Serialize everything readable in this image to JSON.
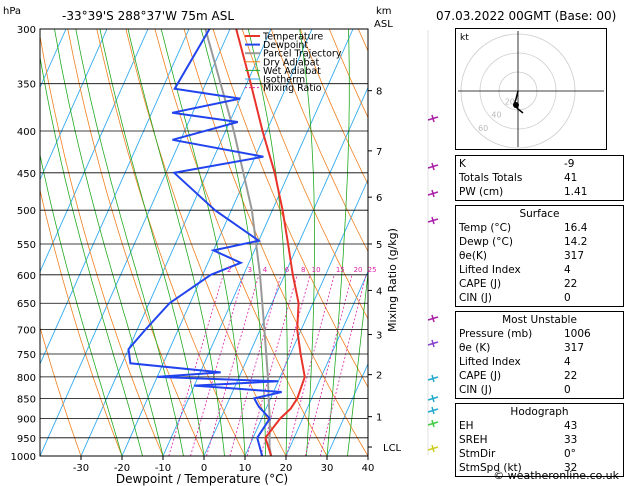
{
  "header": {
    "hpa_label": "hPa",
    "location": "-33°39'S 288°37'W 75m ASL",
    "km_label": "km",
    "asl_label": "ASL",
    "datetime": "07.03.2022 00GMT (Base: 00)"
  },
  "legend": [
    "Temperature",
    "Dewpoint",
    "Parcel Trajectory",
    "Dry Adiabat",
    "Wet Adiabat",
    "Isotherm",
    "Mixing Ratio"
  ],
  "colors": {
    "temperature": "#e8332a",
    "dewpoint": "#2244ee",
    "parcel": "#999999",
    "dry_adiabat": "#f08020",
    "wet_adiabat": "#22aa22",
    "isotherm": "#33aaee",
    "mixing_ratio": "#dd22aa"
  },
  "chart_data": {
    "type": "skew-t",
    "xlabel": "Dewpoint / Temperature (°C)",
    "ylabel_right": "Mixing Ratio (g/kg)",
    "pressure_levels": [
      300,
      350,
      400,
      450,
      500,
      550,
      600,
      650,
      700,
      750,
      800,
      850,
      900,
      950,
      1000
    ],
    "temperature_ticks": [
      -30,
      -20,
      -10,
      0,
      10,
      20,
      30,
      40
    ],
    "km_ticks": [
      {
        "label": "8",
        "p": 357
      },
      {
        "label": "7",
        "p": 423
      },
      {
        "label": "6",
        "p": 482
      },
      {
        "label": "5",
        "p": 550
      },
      {
        "label": "4",
        "p": 627
      },
      {
        "label": "3",
        "p": 710
      },
      {
        "label": "2",
        "p": 795
      },
      {
        "label": "1",
        "p": 895
      },
      {
        "label": "LCL",
        "p": 975
      }
    ],
    "mixing_ratio_labels": [
      "2",
      "3",
      "4",
      "6",
      "8",
      "10",
      "15",
      "20",
      "25"
    ],
    "temperature_profile": [
      {
        "p": 1000,
        "t": 16.4
      },
      {
        "p": 950,
        "t": 13.0
      },
      {
        "p": 900,
        "t": 14.5
      },
      {
        "p": 875,
        "t": 16.0
      },
      {
        "p": 850,
        "t": 16.5
      },
      {
        "p": 800,
        "t": 16.0
      },
      {
        "p": 750,
        "t": 12.5
      },
      {
        "p": 700,
        "t": 9.0
      },
      {
        "p": 650,
        "t": 6.5
      },
      {
        "p": 600,
        "t": 2.0
      },
      {
        "p": 550,
        "t": -2.5
      },
      {
        "p": 500,
        "t": -7.5
      },
      {
        "p": 450,
        "t": -13.5
      },
      {
        "p": 400,
        "t": -21.0
      },
      {
        "p": 350,
        "t": -29.0
      },
      {
        "p": 300,
        "t": -38.5
      }
    ],
    "dewpoint_profile": [
      {
        "p": 1000,
        "t": 14.2
      },
      {
        "p": 950,
        "t": 11.0
      },
      {
        "p": 900,
        "t": 12.0
      },
      {
        "p": 870,
        "t": 8.0
      },
      {
        "p": 850,
        "t": 6.0
      },
      {
        "p": 835,
        "t": 12.0
      },
      {
        "p": 820,
        "t": -10.0
      },
      {
        "p": 810,
        "t": 10.0
      },
      {
        "p": 800,
        "t": -20.0
      },
      {
        "p": 790,
        "t": -5.0
      },
      {
        "p": 770,
        "t": -28.0
      },
      {
        "p": 740,
        "t": -30.0
      },
      {
        "p": 700,
        "t": -28.0
      },
      {
        "p": 650,
        "t": -25.0
      },
      {
        "p": 600,
        "t": -18.0
      },
      {
        "p": 580,
        "t": -12.0
      },
      {
        "p": 560,
        "t": -20.0
      },
      {
        "p": 545,
        "t": -10.0
      },
      {
        "p": 500,
        "t": -24.0
      },
      {
        "p": 450,
        "t": -38.0
      },
      {
        "p": 430,
        "t": -18.0
      },
      {
        "p": 410,
        "t": -42.0
      },
      {
        "p": 390,
        "t": -28.0
      },
      {
        "p": 380,
        "t": -45.0
      },
      {
        "p": 365,
        "t": -30.0
      },
      {
        "p": 355,
        "t": -47.0
      },
      {
        "p": 300,
        "t": -45.0
      }
    ],
    "parcel_profile": [
      {
        "p": 1000,
        "t": 16.4
      },
      {
        "p": 975,
        "t": 15.0
      },
      {
        "p": 900,
        "t": 12.0
      },
      {
        "p": 850,
        "t": 9.5
      },
      {
        "p": 800,
        "t": 7.0
      },
      {
        "p": 700,
        "t": 1.0
      },
      {
        "p": 600,
        "t": -6.0
      },
      {
        "p": 500,
        "t": -15.0
      },
      {
        "p": 400,
        "t": -28.0
      },
      {
        "p": 300,
        "t": -46.0
      }
    ]
  },
  "indices": {
    "rows": [
      {
        "label": "K",
        "value": "-9"
      },
      {
        "label": "Totals Totals",
        "value": "41"
      },
      {
        "label": "PW (cm)",
        "value": "1.41"
      }
    ]
  },
  "surface": {
    "title": "Surface",
    "rows": [
      {
        "label": "Temp (°C)",
        "value": "16.4"
      },
      {
        "label": "Dewp (°C)",
        "value": "14.2"
      },
      {
        "label": "θe(K)",
        "value": "317"
      },
      {
        "label": "Lifted Index",
        "value": "4"
      },
      {
        "label": "CAPE (J)",
        "value": "22"
      },
      {
        "label": "CIN (J)",
        "value": "0"
      }
    ]
  },
  "unstable": {
    "title": "Most Unstable",
    "rows": [
      {
        "label": "Pressure (mb)",
        "value": "1006"
      },
      {
        "label": "θe (K)",
        "value": "317"
      },
      {
        "label": "Lifted Index",
        "value": "4"
      },
      {
        "label": "CAPE (J)",
        "value": "22"
      },
      {
        "label": "CIN (J)",
        "value": "0"
      }
    ]
  },
  "hodograph": {
    "title": "Hodograph",
    "kt_label": "kt",
    "ring_labels": [
      "20",
      "40",
      "60"
    ],
    "rows": [
      {
        "label": "EH",
        "value": "43"
      },
      {
        "label": "SREH",
        "value": "33"
      },
      {
        "label": "StmDir",
        "value": "0°"
      },
      {
        "label": "StmSpd (kt)",
        "value": "32"
      }
    ]
  },
  "footer": "© weatheronline.co.uk"
}
